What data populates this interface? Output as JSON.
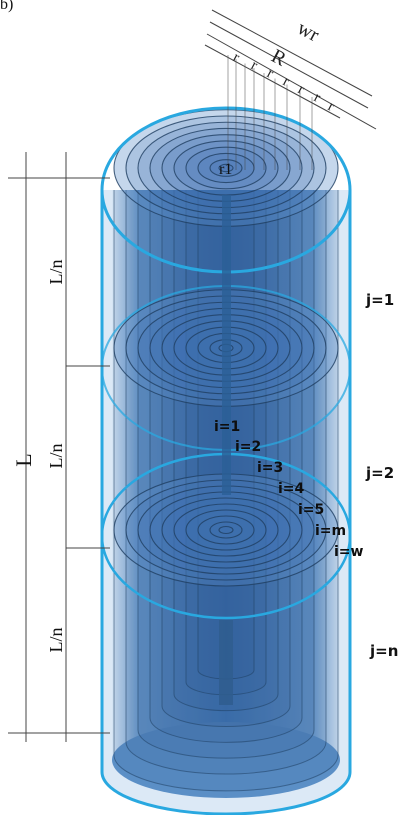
{
  "figure_label": "b)",
  "dimension_labels": {
    "wr": "wr",
    "R": "R",
    "r_marks": [
      "r",
      "r",
      "r",
      "r",
      "r",
      "r",
      "r"
    ],
    "r1": "r1"
  },
  "length_labels": {
    "L": "L",
    "segments": [
      "L/n",
      "L/n",
      "L/n"
    ]
  },
  "segment_labels": [
    "j=1",
    "j=2",
    "j=n"
  ],
  "ring_labels": [
    "i=1",
    "i=2",
    "i=3",
    "i=4",
    "i=5",
    "i=m",
    "i=w"
  ],
  "colors": {
    "outline": "#29a8e0",
    "shell_fill": "#3f78b5",
    "ring_stroke": "#1f3f62",
    "inner_core": "#2b5f96",
    "outer_glow": "#bcd4ee",
    "dimension_line": "#333333"
  }
}
